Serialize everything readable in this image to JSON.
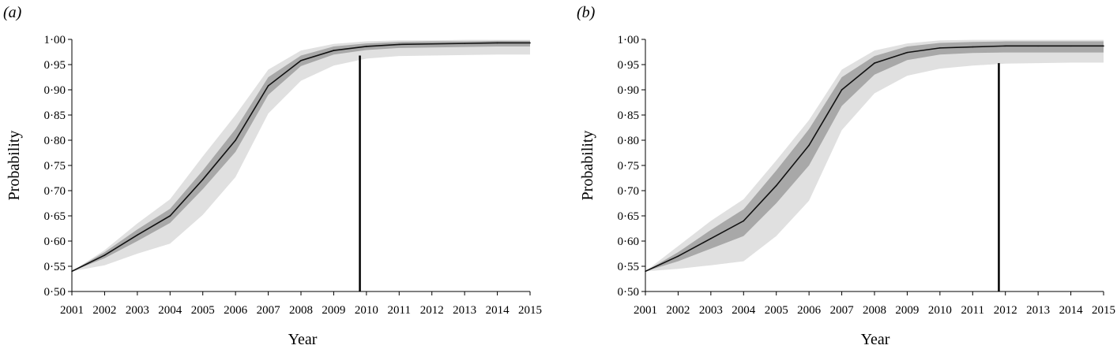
{
  "chart_data": [
    {
      "type": "line",
      "panel_label": "(a)",
      "xlabel": "Year",
      "ylabel": "Probability",
      "x": [
        2001,
        2002,
        2003,
        2004,
        2005,
        2006,
        2007,
        2008,
        2009,
        2010,
        2011,
        2012,
        2013,
        2014,
        2015
      ],
      "x_tick_labels": [
        "2001",
        "2002",
        "2003",
        "2004",
        "2005",
        "2006",
        "2007",
        "2008",
        "2009",
        "2010",
        "2011",
        "2012",
        "2013",
        "2014",
        "2015"
      ],
      "y_tick_labels": [
        "0·50",
        "0·55",
        "0·60",
        "0·65",
        "0·70",
        "0·75",
        "0·80",
        "0·85",
        "0·90",
        "0·95",
        "1·00"
      ],
      "y_ticks": [
        0.5,
        0.55,
        0.6,
        0.65,
        0.7,
        0.75,
        0.8,
        0.85,
        0.9,
        0.95,
        1.0
      ],
      "ylim": [
        0.5,
        1.0
      ],
      "xlim": [
        2001,
        2015
      ],
      "series": [
        {
          "values": [
            0.54,
            0.572,
            0.612,
            0.65,
            0.722,
            0.8,
            0.908,
            0.958,
            0.978,
            0.986,
            0.99,
            0.991,
            0.992,
            0.993,
            0.993
          ]
        }
      ],
      "bands": [
        {
          "color": "#e0e0e0",
          "lower": [
            0.54,
            0.552,
            0.575,
            0.595,
            0.652,
            0.727,
            0.853,
            0.918,
            0.948,
            0.962,
            0.967,
            0.968,
            0.969,
            0.97,
            0.97
          ],
          "upper": [
            0.54,
            0.582,
            0.635,
            0.683,
            0.768,
            0.85,
            0.94,
            0.978,
            0.991,
            0.996,
            0.998,
            0.998,
            0.999,
            0.999,
            0.999
          ]
        },
        {
          "color": "#a8a8a8",
          "lower": [
            0.54,
            0.566,
            0.6,
            0.636,
            0.703,
            0.777,
            0.89,
            0.947,
            0.97,
            0.979,
            0.983,
            0.984,
            0.985,
            0.986,
            0.986
          ],
          "upper": [
            0.54,
            0.578,
            0.623,
            0.664,
            0.74,
            0.822,
            0.925,
            0.968,
            0.986,
            0.992,
            0.995,
            0.996,
            0.996,
            0.997,
            0.997
          ]
        }
      ],
      "vline_x": 2009.8,
      "vline_top": 0.968,
      "colors": {
        "line": "#111111",
        "vline": "#000000"
      }
    },
    {
      "type": "line",
      "panel_label": "(b)",
      "xlabel": "Year",
      "ylabel": "Probability",
      "x": [
        2001,
        2002,
        2003,
        2004,
        2005,
        2006,
        2007,
        2008,
        2009,
        2010,
        2011,
        2012,
        2013,
        2014,
        2015
      ],
      "x_tick_labels": [
        "2001",
        "2002",
        "2003",
        "2004",
        "2005",
        "2006",
        "2007",
        "2008",
        "2009",
        "2010",
        "2011",
        "2012",
        "2013",
        "2014",
        "2015"
      ],
      "y_tick_labels": [
        "0·50",
        "0·55",
        "0·60",
        "0·65",
        "0·70",
        "0·75",
        "0·80",
        "0·85",
        "0·90",
        "0·95",
        "1·00"
      ],
      "y_ticks": [
        0.5,
        0.55,
        0.6,
        0.65,
        0.7,
        0.75,
        0.8,
        0.85,
        0.9,
        0.95,
        1.0
      ],
      "ylim": [
        0.5,
        1.0
      ],
      "xlim": [
        2001,
        2015
      ],
      "series": [
        {
          "values": [
            0.54,
            0.57,
            0.605,
            0.64,
            0.71,
            0.79,
            0.9,
            0.953,
            0.974,
            0.983,
            0.985,
            0.987,
            0.987,
            0.987,
            0.987
          ]
        }
      ],
      "bands": [
        {
          "color": "#e0e0e0",
          "lower": [
            0.54,
            0.545,
            0.552,
            0.56,
            0.61,
            0.68,
            0.82,
            0.893,
            0.928,
            0.942,
            0.948,
            0.952,
            0.953,
            0.954,
            0.954
          ],
          "upper": [
            0.54,
            0.59,
            0.64,
            0.683,
            0.76,
            0.84,
            0.94,
            0.978,
            0.992,
            0.998,
            0.999,
            0.999,
            0.999,
            0.999,
            0.999
          ]
        },
        {
          "color": "#a8a8a8",
          "lower": [
            0.54,
            0.56,
            0.585,
            0.61,
            0.675,
            0.75,
            0.868,
            0.93,
            0.959,
            0.97,
            0.973,
            0.974,
            0.974,
            0.974,
            0.974
          ],
          "upper": [
            0.54,
            0.578,
            0.622,
            0.663,
            0.74,
            0.822,
            0.925,
            0.967,
            0.986,
            0.993,
            0.995,
            0.996,
            0.996,
            0.996,
            0.996
          ]
        }
      ],
      "vline_x": 2011.8,
      "vline_top": 0.953,
      "colors": {
        "line": "#111111",
        "vline": "#000000"
      }
    }
  ]
}
